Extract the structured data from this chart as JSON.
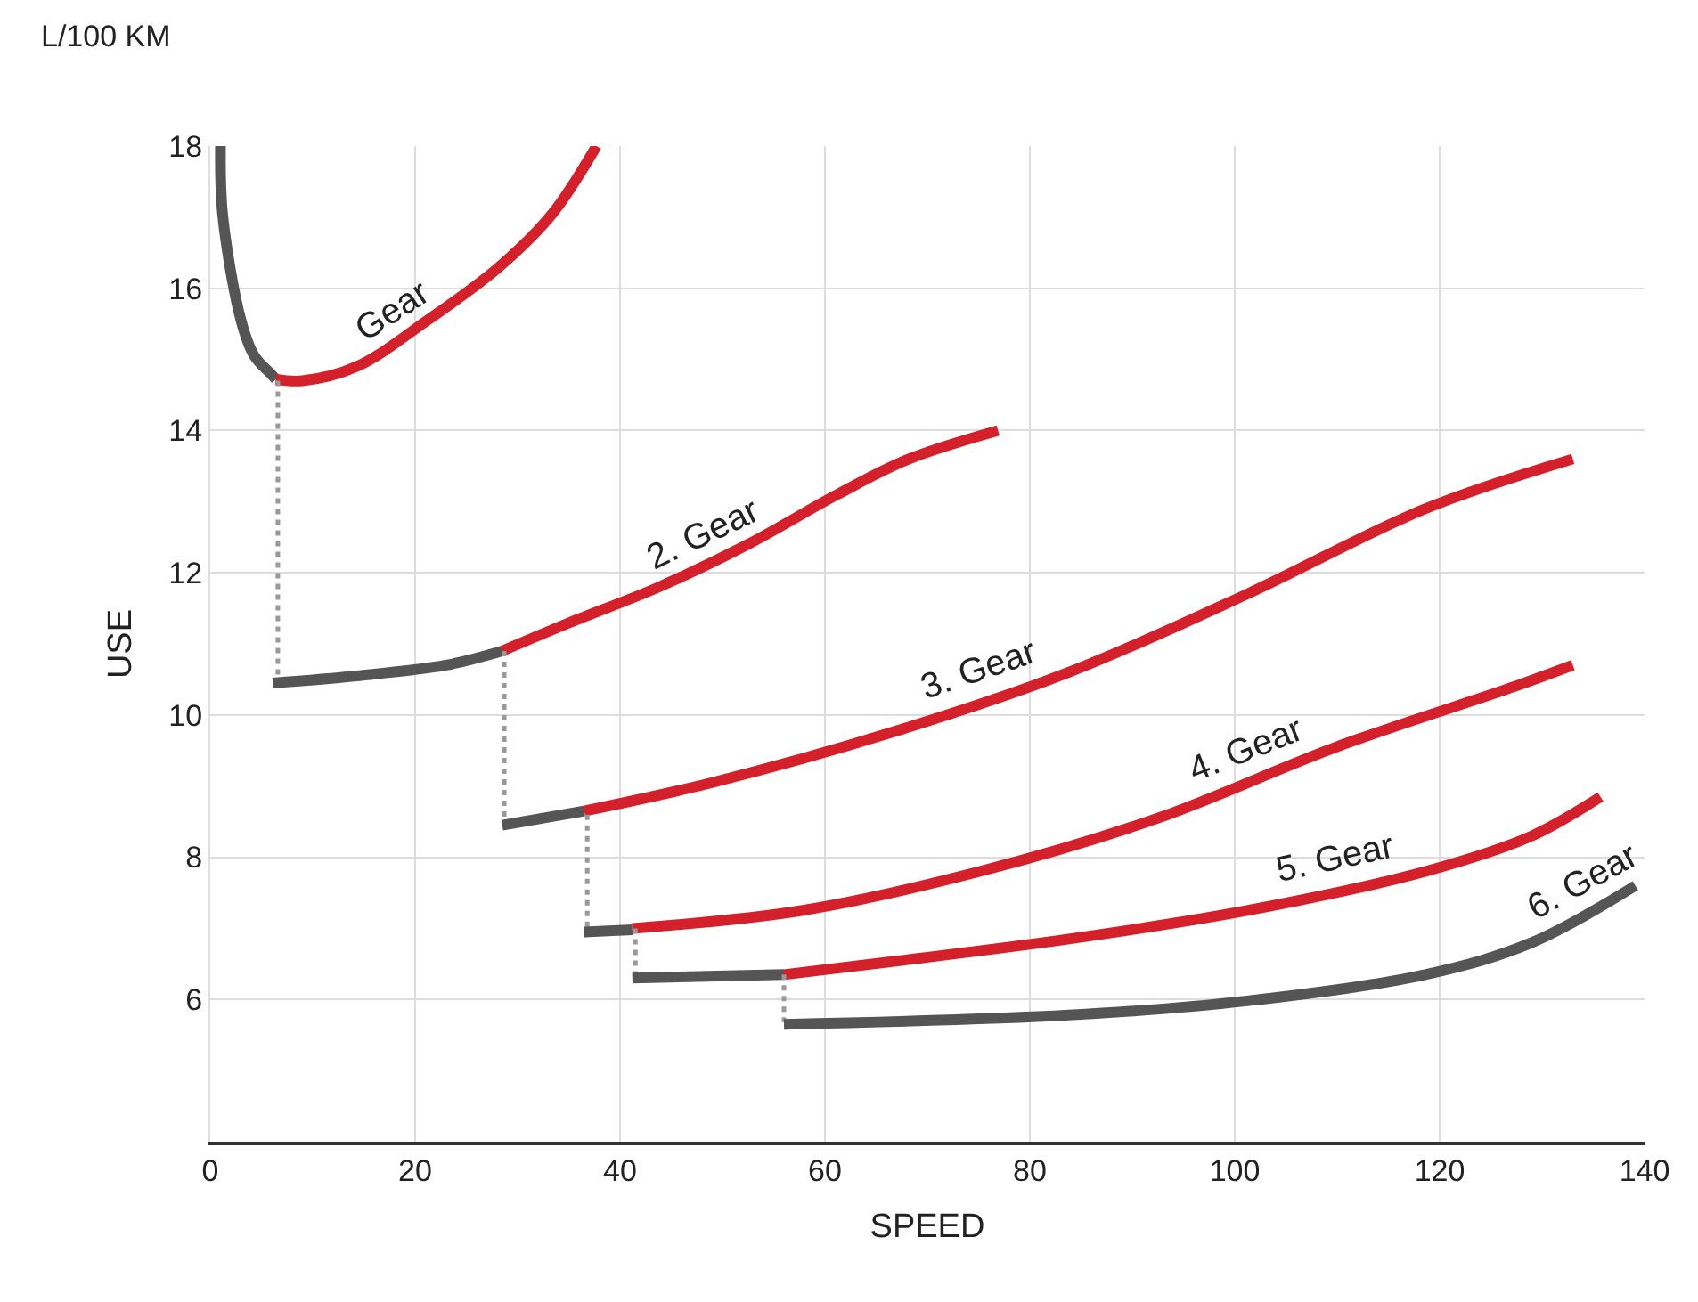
{
  "chart_data": {
    "type": "line",
    "xlabel": "SPEED",
    "ylabel": "USE",
    "xlim": [
      0,
      140
    ],
    "xticks": [
      0,
      20,
      40,
      60,
      80,
      100,
      120,
      140
    ],
    "ylim": [
      4,
      18
    ],
    "yticks": [
      6,
      8,
      10,
      12,
      14,
      16,
      18
    ],
    "grid": true,
    "legend": false,
    "marker": "none",
    "line_style": "solid",
    "series": [
      {
        "color": "#555555",
        "x": [
          1,
          1.2,
          3,
          4.3,
          5.9,
          6.4
        ],
        "values": [
          18,
          17.05,
          15.55,
          15.05,
          14.8,
          14.72
        ]
      },
      {
        "name": "Gear",
        "color": "#d3202a",
        "x": [
          6.4,
          9,
          14.3,
          21.2,
          28.2,
          33.4,
          37.7
        ],
        "values": [
          14.72,
          14.7,
          14.9,
          15.55,
          16.3,
          17.05,
          18
        ]
      },
      {
        "color": "#999999",
        "line_style": "dotted",
        "x": [
          6.6,
          6.6
        ],
        "values": [
          14.7,
          10.45
        ]
      },
      {
        "color": "#555555",
        "x": [
          6.1,
          14.3,
          23,
          28.5
        ],
        "values": [
          10.45,
          10.55,
          10.7,
          10.9
        ]
      },
      {
        "name": "2. Gear",
        "color": "#d3202a",
        "x": [
          28.5,
          35.1,
          43.8,
          52.5,
          61.2,
          68.2,
          76.9
        ],
        "values": [
          10.9,
          11.3,
          11.8,
          12.4,
          13.1,
          13.6,
          14.0
        ]
      },
      {
        "color": "#999999",
        "line_style": "dotted",
        "x": [
          28.7,
          28.7
        ],
        "values": [
          10.9,
          8.5
        ]
      },
      {
        "color": "#555555",
        "x": [
          28.5,
          36.5
        ],
        "values": [
          8.45,
          8.65
        ]
      },
      {
        "name": "3. Gear",
        "color": "#d3202a",
        "x": [
          36.5,
          49,
          66.4,
          83.8,
          101.2,
          118.6,
          133
        ],
        "values": [
          8.65,
          9.05,
          9.75,
          10.6,
          11.7,
          12.9,
          13.6
        ]
      },
      {
        "color": "#999999",
        "line_style": "dotted",
        "x": [
          36.8,
          36.8
        ],
        "values": [
          8.6,
          6.97
        ]
      },
      {
        "color": "#555555",
        "x": [
          36.5,
          41.2
        ],
        "values": [
          6.95,
          6.98
        ]
      },
      {
        "name": "4. Gear",
        "color": "#d3202a",
        "x": [
          41.2,
          57.7,
          75.1,
          92.5,
          109.9,
          127.3,
          133
        ],
        "values": [
          7.0,
          7.25,
          7.8,
          8.55,
          9.55,
          10.4,
          10.7
        ]
      },
      {
        "color": "#999999",
        "line_style": "dotted",
        "x": [
          41.5,
          41.5
        ],
        "values": [
          7.0,
          6.33
        ]
      },
      {
        "color": "#555555",
        "x": [
          41.2,
          56
        ],
        "values": [
          6.3,
          6.35
        ]
      },
      {
        "name": "5. Gear",
        "color": "#d3202a",
        "x": [
          56,
          66.4,
          83.8,
          101.2,
          118.6,
          129,
          135.7
        ],
        "values": [
          6.35,
          6.53,
          6.85,
          7.25,
          7.8,
          8.3,
          8.85
        ]
      },
      {
        "color": "#999999",
        "line_style": "dotted",
        "x": [
          56,
          56
        ],
        "values": [
          6.35,
          5.68
        ]
      },
      {
        "name": "6. Gear",
        "color": "#555555",
        "x": [
          56,
          83.8,
          101.2,
          118.6,
          129,
          139.1
        ],
        "values": [
          5.65,
          5.78,
          5.98,
          6.35,
          6.8,
          7.6
        ]
      }
    ],
    "annotations": [
      "L/100 KM"
    ]
  }
}
